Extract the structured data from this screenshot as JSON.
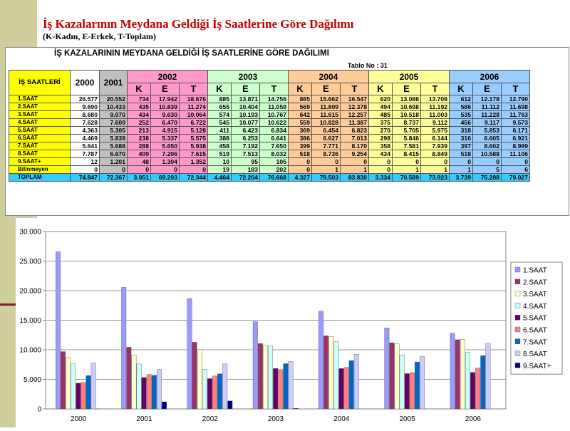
{
  "slide": {
    "title": "İş Kazalarının Meydana Geldiği İş Saatlerine Göre Dağılımı",
    "subtitle": "(K-Kadın, E-Erkek, T-Toplam)"
  },
  "table": {
    "title": "İŞ KAZALARININ MEYDANA GELDİĞİ İŞ SAATLERİNE GÖRE DAĞILIMI",
    "table_no": "Tablo No : 31",
    "row_header": "İŞ SAATLERİ",
    "years": [
      "2000",
      "2001",
      "2002",
      "2003",
      "2004",
      "2005",
      "2006"
    ],
    "sub_headers": [
      "K",
      "E",
      "T"
    ],
    "rows": [
      {
        "label": "1.SAAT",
        "cells": [
          "26.577",
          "20.552",
          "734",
          "17.942",
          "18.676",
          "885",
          "13.871",
          "14.756",
          "885",
          "15.662",
          "16.547",
          "620",
          "13.088",
          "13.708",
          "612",
          "12.178",
          "12.790"
        ]
      },
      {
        "label": "2.SAAT",
        "cells": [
          "9.690",
          "10.433",
          "435",
          "10.839",
          "11.274",
          "655",
          "10.404",
          "11.059",
          "569",
          "11.809",
          "12.378",
          "494",
          "10.698",
          "11.192",
          "586",
          "11.112",
          "11.698"
        ]
      },
      {
        "label": "3.SAAT",
        "cells": [
          "8.680",
          "9.070",
          "434",
          "9.630",
          "10.064",
          "574",
          "10.193",
          "10.767",
          "642",
          "11.615",
          "12.257",
          "485",
          "10.518",
          "11.003",
          "535",
          "11.228",
          "11.763"
        ]
      },
      {
        "label": "4.SAAT",
        "cells": [
          "7.628",
          "7.609",
          "252",
          "6.470",
          "6.722",
          "545",
          "10.077",
          "10.622",
          "559",
          "10.828",
          "11.387",
          "375",
          "8.737",
          "9.112",
          "456",
          "9.117",
          "9.573"
        ]
      },
      {
        "label": "5.SAAT",
        "cells": [
          "4.363",
          "5.305",
          "213",
          "4.915",
          "5.128",
          "411",
          "6.423",
          "6.834",
          "369",
          "6.454",
          "6.823",
          "270",
          "5.705",
          "5.975",
          "318",
          "5.853",
          "6.171"
        ]
      },
      {
        "label": "6.SAAT",
        "cells": [
          "4.469",
          "5.839",
          "238",
          "5.337",
          "5.575",
          "388",
          "6.253",
          "6.641",
          "386",
          "6.627",
          "7.013",
          "298",
          "5.846",
          "6.144",
          "316",
          "6.605",
          "6.921"
        ]
      },
      {
        "label": "7.SAAT",
        "cells": [
          "5.641",
          "5.688",
          "288",
          "5.650",
          "5.938",
          "458",
          "7.192",
          "7.650",
          "399",
          "7.771",
          "8.170",
          "358",
          "7.581",
          "7.939",
          "397",
          "8.602",
          "8.999"
        ]
      },
      {
        "label": "8.SAAT",
        "cells": [
          "7.787",
          "6.670",
          "409",
          "7.206",
          "7.615",
          "519",
          "7.513",
          "8.032",
          "518",
          "8.736",
          "9.254",
          "434",
          "8.415",
          "8.849",
          "518",
          "10.588",
          "11.106"
        ]
      },
      {
        "label": "9.SAAT+",
        "cells": [
          "12",
          "1.201",
          "48",
          "1.304",
          "1.352",
          "10",
          "95",
          "105",
          "0",
          "0",
          "0",
          "0",
          "0",
          "0",
          "0",
          "0",
          "0"
        ]
      },
      {
        "label": "Bilinmeyen",
        "cells": [
          "0",
          "0",
          "0",
          "0",
          "0",
          "19",
          "183",
          "202",
          "0",
          "1",
          "1",
          "0",
          "1",
          "1",
          "1",
          "5",
          "6"
        ]
      }
    ],
    "total": {
      "label": "TOPLAM",
      "cells": [
        "74.847",
        "72.367",
        "3.051",
        "69.293",
        "72.344",
        "4.464",
        "72.204",
        "76.668",
        "4.327",
        "79.503",
        "83.830",
        "3.334",
        "70.589",
        "73.923",
        "3.739",
        "75.288",
        "79.027"
      ]
    }
  },
  "colors": {
    "accent_title": "#c00000",
    "year_2002": "#ff99cc",
    "year_2003": "#ccffcc",
    "year_2004": "#ffcc99",
    "year_2005": "#ffff99",
    "year_2006": "#99ccff",
    "total_row": "#33ccff"
  },
  "chart_data": {
    "type": "bar",
    "categories": [
      "2000",
      "2001",
      "2002",
      "2003",
      "2004",
      "2005",
      "2006"
    ],
    "ylim": [
      0,
      30000
    ],
    "yticks": [
      "0",
      "5.000",
      "10.000",
      "15.000",
      "20.000",
      "25.000",
      "30.000"
    ],
    "grid": true,
    "legend_position": "right",
    "series": [
      {
        "name": "1.SAAT",
        "color": "#9999ff",
        "values": [
          26577,
          20552,
          18676,
          14756,
          16547,
          13708,
          12790
        ]
      },
      {
        "name": "2.SAAT",
        "color": "#993366",
        "values": [
          9690,
          10433,
          11274,
          11059,
          12378,
          11192,
          11698
        ]
      },
      {
        "name": "3.SAAT",
        "color": "#ffffcc",
        "values": [
          8680,
          9070,
          10064,
          10767,
          12257,
          11003,
          11763
        ]
      },
      {
        "name": "4.SAAT",
        "color": "#ccffff",
        "values": [
          7628,
          7609,
          6722,
          10622,
          11387,
          9112,
          9573
        ]
      },
      {
        "name": "5.SAAT",
        "color": "#660066",
        "values": [
          4363,
          5305,
          5128,
          6834,
          6823,
          5975,
          6171
        ]
      },
      {
        "name": "6.SAAT",
        "color": "#ff8080",
        "values": [
          4469,
          5839,
          5575,
          6641,
          7013,
          6144,
          6921
        ]
      },
      {
        "name": "7.SAAT",
        "color": "#0066cc",
        "values": [
          5641,
          5688,
          5938,
          7650,
          8170,
          7939,
          8999
        ]
      },
      {
        "name": "8.SAAT",
        "color": "#ccccff",
        "values": [
          7787,
          6670,
          7615,
          8032,
          9254,
          8849,
          11106
        ]
      },
      {
        "name": "9.SAAT+",
        "color": "#000080",
        "values": [
          12,
          1201,
          1352,
          105,
          0,
          0,
          0
        ]
      }
    ]
  }
}
